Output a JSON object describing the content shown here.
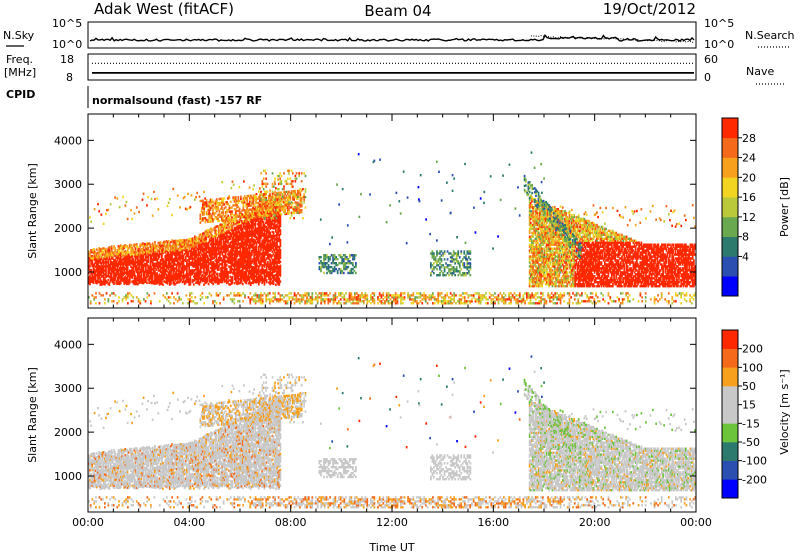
{
  "header": {
    "station": "Adak West (fitACF)",
    "beam": "Beam 04",
    "date": "19/Oct/2012"
  },
  "noise_panel": {
    "left_label": "N.Sky",
    "right_label": "N.Search",
    "left_ticks": [
      "10^5",
      "10^0"
    ],
    "right_ticks": [
      "10^5",
      "10^0"
    ]
  },
  "freq_panel": {
    "left_label_1": "Freq.",
    "left_label_2": "[MHz]",
    "left_ticks": [
      "18",
      "8"
    ],
    "right_label": "Nave",
    "right_ticks": [
      "60",
      "0"
    ],
    "freq_value_mhz": 10.3,
    "nave_value": 40
  },
  "cpid_panel": {
    "label": "CPID",
    "text": "normalsound (fast) -157 RF"
  },
  "chart_data": [
    {
      "type": "heatmap",
      "name": "power",
      "ylabel": "Slant Range [km]",
      "ylim": [
        180,
        4600
      ],
      "yticks": [
        "4000",
        "3000",
        "2000",
        "1000"
      ],
      "yticks_values": [
        4000,
        3000,
        2000,
        1000
      ],
      "xlim_hours": [
        0,
        24
      ],
      "colorbar": {
        "label": "Power [dB]",
        "range": [
          0,
          32
        ],
        "tick_labels": [
          "28",
          "24",
          "20",
          "16",
          "12",
          "8",
          "4"
        ],
        "tick_values": [
          28,
          24,
          20,
          16,
          12,
          8,
          4
        ],
        "colors": [
          "#0000ff",
          "#2a4fb0",
          "#2c7a6e",
          "#6aa84f",
          "#b9c93a",
          "#f2d520",
          "#f7a01e",
          "#f46a1a",
          "#ff2800"
        ]
      }
    },
    {
      "type": "heatmap",
      "name": "velocity",
      "ylabel": "Slant Range [km]",
      "ylim": [
        180,
        4600
      ],
      "yticks": [
        "4000",
        "3000",
        "2000",
        "1000"
      ],
      "yticks_values": [
        4000,
        3000,
        2000,
        1000
      ],
      "xlim_hours": [
        0,
        24
      ],
      "xlabel": "Time UT",
      "xticks": [
        "00:00",
        "04:00",
        "08:00",
        "12:00",
        "16:00",
        "20:00",
        "00:00"
      ],
      "colorbar": {
        "label": "Velocity [m s⁻¹]",
        "tick_labels": [
          "200",
          "100",
          "50",
          "15",
          "-15",
          "-50",
          "-100",
          "-200"
        ],
        "colors": [
          "#0000ff",
          "#2a4fb0",
          "#2c7a6e",
          "#6cc33c",
          "#c8c8c8",
          "#c8c8c8",
          "#f7a01e",
          "#f46a1a",
          "#ff2800"
        ]
      }
    }
  ]
}
